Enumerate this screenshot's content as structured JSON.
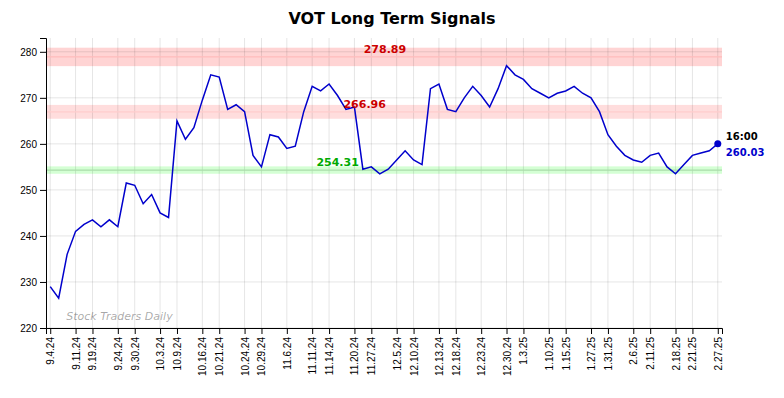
{
  "chart_data": {
    "type": "line",
    "title": "VOT Long Term Signals",
    "watermark": "Stock Traders Daily",
    "categories": [
      "9.4.24",
      null,
      null,
      "9.11.24",
      null,
      "9.19.24",
      null,
      null,
      "9.24.24",
      null,
      "9.30.24",
      null,
      null,
      "10.3.24",
      null,
      "10.9.24",
      null,
      null,
      "10.16.24",
      null,
      "10.21.24",
      null,
      null,
      "10.24.24",
      null,
      "10.29.24",
      null,
      null,
      "11.6.24",
      null,
      null,
      "11.11.24",
      null,
      "11.14.24",
      null,
      null,
      "11.20.24",
      null,
      "11.27.24",
      null,
      null,
      "12.5.24",
      null,
      "12.10.24",
      null,
      null,
      "12.13.24",
      null,
      "12.18.24",
      null,
      null,
      "12.23.24",
      null,
      null,
      "12.30.24",
      null,
      "1.3.25",
      null,
      null,
      "1.10.25",
      null,
      "1.15.25",
      null,
      null,
      "1.27.25",
      null,
      "1.31.25",
      null,
      null,
      "2.6.25",
      null,
      "2.11.25",
      null,
      null,
      "2.18.25",
      null,
      "2.21.25",
      null,
      null,
      "2.27.25"
    ],
    "values": [
      229.0,
      226.5,
      236.0,
      241.0,
      242.5,
      243.5,
      242.0,
      243.5,
      242.0,
      251.5,
      251.0,
      247.0,
      249.0,
      245.0,
      244.0,
      265.0,
      261.0,
      263.5,
      269.5,
      275.0,
      274.5,
      267.5,
      268.5,
      267.0,
      257.5,
      255.0,
      262.0,
      261.5,
      259.0,
      259.5,
      267.0,
      272.5,
      271.5,
      273.0,
      270.5,
      267.5,
      268.0,
      254.5,
      255.0,
      253.5,
      254.5,
      256.5,
      258.5,
      256.5,
      255.5,
      272.0,
      273.0,
      267.5,
      267.0,
      270.0,
      272.5,
      270.5,
      268.0,
      272.0,
      277.0,
      275.0,
      274.0,
      272.0,
      271.0,
      270.0,
      271.0,
      271.5,
      272.5,
      271.0,
      270.0,
      267.0,
      262.0,
      259.5,
      257.5,
      256.5,
      256.0,
      257.5,
      258.0,
      255.0,
      253.5,
      255.5,
      257.5,
      258.0,
      258.5,
      260.03
    ],
    "color": "#0000cc",
    "ylim": [
      220,
      283
    ],
    "yticks": [
      220,
      230,
      240,
      250,
      260,
      270,
      280
    ],
    "grid": true,
    "bands": [
      {
        "value": 278.89,
        "half_width": 2.0,
        "color": "#ffaaaa",
        "line_color": "#ffbbbb",
        "label_color": "#cc0000"
      },
      {
        "value": 266.96,
        "half_width": 1.5,
        "color": "#ffbbbb",
        "line_color": "#ffcccc",
        "label_color": "#cc0000"
      },
      {
        "value": 254.31,
        "half_width": 0.8,
        "color": "#aaffaa",
        "line_color": "#aaddaa",
        "label_color": "#00aa00"
      }
    ],
    "last_time": "16:00",
    "last_price": 260.03
  }
}
